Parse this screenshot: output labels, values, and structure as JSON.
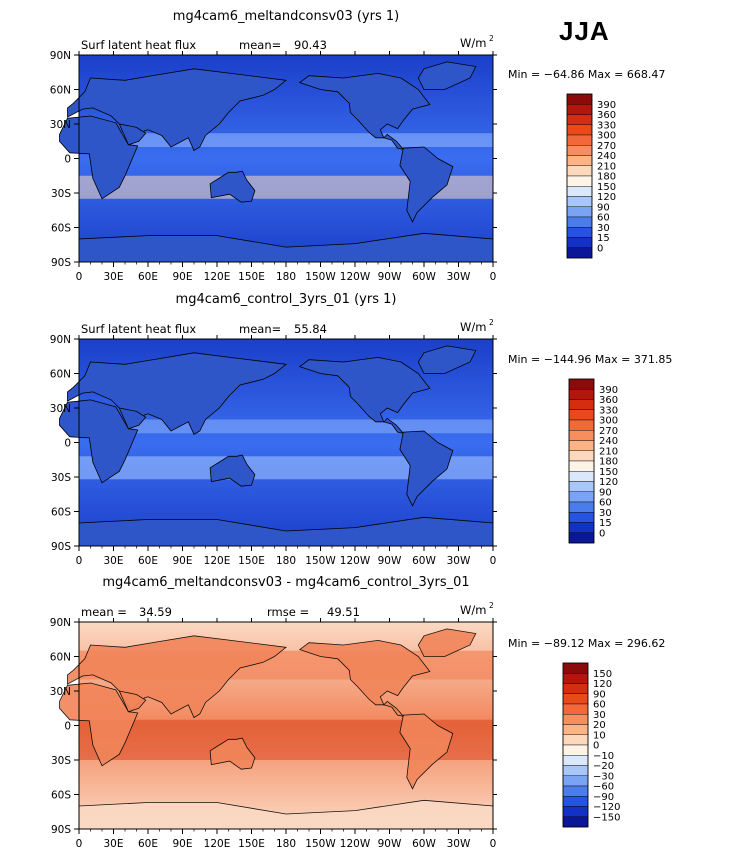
{
  "season": "JJA",
  "colors": {
    "land": "#2f56c9",
    "ocean_low": "#1b3fc9",
    "ocean_mid": "#3a6df0",
    "ocean_high": "#9ec2ff",
    "diff_bg": "#f2855a",
    "diff_mid": "#d9451f",
    "diff_light": "#fbd9c3",
    "coast": "#000000"
  },
  "chart_data": [
    {
      "type": "heatmap",
      "title": "mg4cam6_meltandconsv03 (yrs 1)",
      "left_label": "Surf latent heat flux",
      "stat1_label": "mean=",
      "stat1_value": "90.43",
      "stat2_label": "",
      "stat2_value": "",
      "units": "W/m",
      "units_exp": "2",
      "minmax": "Min = −64.86 Max = 668.47",
      "x_ticks": [
        "0",
        "30E",
        "60E",
        "90E",
        "120E",
        "150E",
        "180",
        "150W",
        "120W",
        "90W",
        "60W",
        "30W",
        "0"
      ],
      "y_ticks": [
        "90N",
        "60N",
        "30N",
        "0",
        "30S",
        "60S",
        "90S"
      ],
      "xlim": [
        0,
        360
      ],
      "ylim": [
        -90,
        90
      ],
      "colorbar_labels": [
        "390",
        "360",
        "330",
        "300",
        "270",
        "240",
        "210",
        "180",
        "150",
        "120",
        "90",
        "60",
        "30",
        "15",
        "0"
      ],
      "colorbar_colors": [
        "#8b0a0a",
        "#b3160c",
        "#d42d0f",
        "#e84a1a",
        "#f2683a",
        "#f78e5d",
        "#fcb487",
        "#fcd8bd",
        "#fdf3e6",
        "#dbe7fb",
        "#a9c6f8",
        "#7aa3f3",
        "#4a7cec",
        "#2654e0",
        "#1431c6",
        "#0a1796"
      ]
    },
    {
      "type": "heatmap",
      "title": "mg4cam6_control_3yrs_01 (yrs 1)",
      "left_label": "Surf latent heat flux",
      "stat1_label": "mean=",
      "stat1_value": "55.84",
      "stat2_label": "",
      "stat2_value": "",
      "units": "W/m",
      "units_exp": "2",
      "minmax": "Min = −144.96 Max = 371.85",
      "x_ticks": [
        "0",
        "30E",
        "60E",
        "90E",
        "120E",
        "150E",
        "180",
        "150W",
        "120W",
        "90W",
        "60W",
        "30W",
        "0"
      ],
      "y_ticks": [
        "90N",
        "60N",
        "30N",
        "0",
        "30S",
        "60S",
        "90S"
      ],
      "xlim": [
        0,
        360
      ],
      "ylim": [
        -90,
        90
      ],
      "colorbar_labels": [
        "390",
        "360",
        "330",
        "300",
        "270",
        "240",
        "210",
        "180",
        "150",
        "120",
        "90",
        "60",
        "30",
        "15",
        "0"
      ],
      "colorbar_colors": [
        "#8b0a0a",
        "#b3160c",
        "#d42d0f",
        "#e84a1a",
        "#f2683a",
        "#f78e5d",
        "#fcb487",
        "#fcd8bd",
        "#fdf3e6",
        "#dbe7fb",
        "#a9c6f8",
        "#7aa3f3",
        "#4a7cec",
        "#2654e0",
        "#1431c6",
        "#0a1796"
      ]
    },
    {
      "type": "heatmap",
      "title": "mg4cam6_meltandconsv03 - mg4cam6_control_3yrs_01",
      "left_label": "",
      "stat1_label": "mean =",
      "stat1_value": "34.59",
      "stat2_label": "rmse =",
      "stat2_value": "49.51",
      "units": "W/m",
      "units_exp": "2",
      "minmax": "Min = −89.12 Max = 296.62",
      "x_ticks": [
        "0",
        "30E",
        "60E",
        "90E",
        "120E",
        "150E",
        "180",
        "150W",
        "120W",
        "90W",
        "60W",
        "30W",
        "0"
      ],
      "y_ticks": [
        "90N",
        "60N",
        "30N",
        "0",
        "30S",
        "60S",
        "90S"
      ],
      "xlim": [
        0,
        360
      ],
      "ylim": [
        -90,
        90
      ],
      "colorbar_labels": [
        "150",
        "120",
        "90",
        "60",
        "30",
        "20",
        "10",
        "0",
        "−10",
        "−20",
        "−30",
        "−60",
        "−90",
        "−120",
        "−150"
      ],
      "colorbar_colors": [
        "#8b0a0a",
        "#b3160c",
        "#d42d0f",
        "#e84a1a",
        "#f2683a",
        "#f78e5d",
        "#fcb487",
        "#fcd8bd",
        "#fdf3e6",
        "#dbe7fb",
        "#a9c6f8",
        "#7aa3f3",
        "#4a7cec",
        "#2654e0",
        "#1431c6",
        "#0a1796"
      ]
    }
  ]
}
